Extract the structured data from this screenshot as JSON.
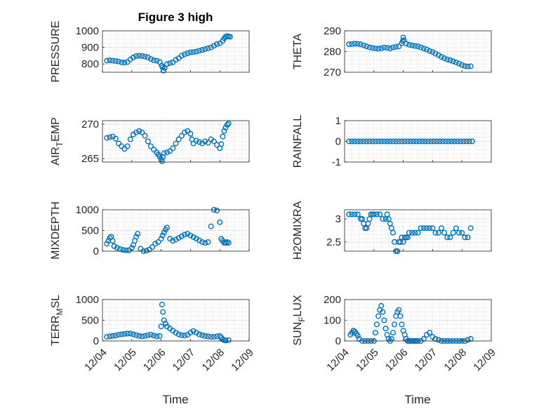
{
  "figure": {
    "title": "Figure 3 high",
    "marker_color": "#0072BD",
    "xlabel": "Time"
  },
  "chart_data": [
    {
      "type": "scatter",
      "title": "Figure 3 high",
      "ylabel": "PRESSURE",
      "ylabel_main": "PRESSURE",
      "ylabel_sub": "",
      "ylim": [
        750,
        1000
      ],
      "yticks": [
        800,
        900,
        1000
      ],
      "xlim": [
        0,
        5
      ],
      "xticks": [],
      "grid": true,
      "x": [
        0.15,
        0.25,
        0.35,
        0.45,
        0.55,
        0.65,
        0.75,
        0.85,
        0.95,
        1.05,
        1.15,
        1.25,
        1.35,
        1.45,
        1.55,
        1.65,
        1.75,
        1.85,
        1.95,
        2.02,
        2.05,
        2.08,
        2.12,
        2.2,
        2.3,
        2.4,
        2.5,
        2.6,
        2.7,
        2.8,
        2.9,
        3.0,
        3.1,
        3.2,
        3.3,
        3.4,
        3.5,
        3.6,
        3.7,
        3.8,
        3.9,
        4.0,
        4.1,
        4.15,
        4.2,
        4.25,
        4.3,
        4.35
      ],
      "y": [
        820,
        822,
        820,
        818,
        815,
        810,
        808,
        812,
        828,
        840,
        848,
        850,
        848,
        845,
        840,
        830,
        822,
        820,
        812,
        790,
        780,
        760,
        775,
        800,
        805,
        810,
        825,
        835,
        850,
        858,
        865,
        870,
        872,
        875,
        880,
        885,
        890,
        895,
        900,
        910,
        920,
        925,
        940,
        955,
        965,
        968,
        966,
        964
      ]
    },
    {
      "type": "scatter",
      "title": "",
      "ylabel": "THETA",
      "ylabel_main": "THETA",
      "ylabel_sub": "",
      "ylim": [
        270,
        290
      ],
      "yticks": [
        270,
        280,
        290
      ],
      "xlim": [
        0,
        5
      ],
      "xticks": [],
      "grid": true,
      "x": [
        0.15,
        0.25,
        0.35,
        0.45,
        0.55,
        0.65,
        0.75,
        0.85,
        0.95,
        1.05,
        1.15,
        1.25,
        1.35,
        1.45,
        1.55,
        1.65,
        1.75,
        1.85,
        1.95,
        1.98,
        2.0,
        2.02,
        2.1,
        2.2,
        2.3,
        2.4,
        2.5,
        2.6,
        2.7,
        2.8,
        2.9,
        3.0,
        3.1,
        3.2,
        3.3,
        3.4,
        3.5,
        3.6,
        3.7,
        3.8,
        3.9,
        4.0,
        4.1,
        4.2,
        4.3
      ],
      "y": [
        283.5,
        283.6,
        283.8,
        283.7,
        283.5,
        283.0,
        282.5,
        282.0,
        281.8,
        281.5,
        281.4,
        281.6,
        282.0,
        281.8,
        281.5,
        282.0,
        282.3,
        282.5,
        284,
        285,
        286.8,
        285.5,
        283.8,
        283.3,
        283.0,
        282.7,
        282.5,
        282.0,
        281.5,
        281.0,
        280.3,
        279.8,
        279.0,
        278.3,
        277.5,
        276.8,
        276.2,
        275.8,
        275.3,
        274.8,
        274.2,
        273.5,
        273.0,
        272.8,
        272.9
      ]
    },
    {
      "type": "scatter",
      "title": "",
      "ylabel": "AIR_TEMP",
      "ylabel_main": "AIR",
      "ylabel_sub": "T",
      "ylabel_rest": "EMP",
      "ylim": [
        264.5,
        270.5
      ],
      "yticks": [
        265,
        270
      ],
      "xlim": [
        0,
        5
      ],
      "xticks": [],
      "grid": true,
      "x": [
        0.15,
        0.25,
        0.35,
        0.45,
        0.55,
        0.65,
        0.75,
        0.85,
        0.95,
        1.05,
        1.15,
        1.25,
        1.35,
        1.45,
        1.55,
        1.65,
        1.75,
        1.85,
        1.9,
        1.95,
        2.0,
        2.03,
        2.06,
        2.1,
        2.2,
        2.3,
        2.4,
        2.5,
        2.6,
        2.7,
        2.8,
        2.9,
        3.0,
        3.05,
        3.1,
        3.2,
        3.3,
        3.4,
        3.5,
        3.6,
        3.7,
        3.8,
        3.9,
        4.0,
        4.05,
        4.1,
        4.15,
        4.2,
        4.25,
        4.3
      ],
      "y": [
        268.0,
        268.1,
        268.2,
        267.9,
        267.2,
        266.8,
        266.4,
        266.8,
        267.8,
        268.5,
        268.8,
        269.0,
        268.8,
        268.3,
        267.5,
        266.8,
        266.3,
        265.9,
        265.6,
        265.3,
        264.9,
        264.6,
        265.2,
        265.8,
        265.9,
        266.1,
        266.5,
        267.2,
        267.8,
        268.3,
        268.8,
        269.0,
        268.6,
        267.8,
        267.2,
        267.6,
        267.4,
        267.2,
        267.5,
        267.3,
        267.8,
        267.5,
        267.0,
        266.5,
        267.1,
        268.2,
        269.0,
        269.5,
        269.9,
        270.1
      ]
    },
    {
      "type": "scatter",
      "title": "",
      "ylabel": "RAINFALL",
      "ylabel_main": "RAINFALL",
      "ylabel_sub": "",
      "ylim": [
        -1,
        1
      ],
      "yticks": [
        -1,
        0,
        1
      ],
      "xlim": [
        0,
        5
      ],
      "xticks": [],
      "grid": true,
      "x": [
        0.15,
        0.25,
        0.35,
        0.45,
        0.55,
        0.65,
        0.75,
        0.85,
        0.95,
        1.05,
        1.15,
        1.25,
        1.35,
        1.45,
        1.55,
        1.65,
        1.75,
        1.85,
        1.95,
        2.05,
        2.15,
        2.25,
        2.35,
        2.45,
        2.55,
        2.65,
        2.75,
        2.85,
        2.95,
        3.05,
        3.15,
        3.25,
        3.35,
        3.45,
        3.55,
        3.65,
        3.75,
        3.85,
        3.95,
        4.05,
        4.15,
        4.25,
        4.35
      ],
      "y": [
        0,
        0,
        0,
        0,
        0,
        0,
        0,
        0,
        0,
        0,
        0,
        0,
        0,
        0,
        0,
        0,
        0,
        0,
        0,
        0,
        0,
        0,
        0,
        0,
        0,
        0,
        0,
        0,
        0,
        0,
        0,
        0,
        0,
        0,
        0,
        0,
        0,
        0,
        0,
        0,
        0,
        0,
        0
      ]
    },
    {
      "type": "scatter",
      "title": "",
      "ylabel": "MIXDEPTH",
      "ylabel_main": "MIXDEPTH",
      "ylabel_sub": "",
      "ylim": [
        0,
        1000
      ],
      "yticks": [
        0,
        500,
        1000
      ],
      "xlim": [
        0,
        5
      ],
      "xticks": [],
      "grid": true,
      "x": [
        0.15,
        0.2,
        0.25,
        0.3,
        0.35,
        0.4,
        0.5,
        0.6,
        0.7,
        0.8,
        0.9,
        1.0,
        1.05,
        1.1,
        1.15,
        1.2,
        1.3,
        1.4,
        1.5,
        1.6,
        1.7,
        1.8,
        1.9,
        2.0,
        2.05,
        2.1,
        2.15,
        2.2,
        2.3,
        2.4,
        2.5,
        2.6,
        2.7,
        2.8,
        2.9,
        3.0,
        3.1,
        3.2,
        3.3,
        3.4,
        3.5,
        3.6,
        3.7,
        3.8,
        3.9,
        4.0,
        4.05,
        4.1,
        4.15,
        4.2,
        4.25,
        4.3
      ],
      "y": [
        180,
        250,
        320,
        350,
        250,
        120,
        80,
        50,
        30,
        20,
        20,
        80,
        150,
        250,
        350,
        420,
        60,
        0,
        10,
        40,
        100,
        180,
        220,
        300,
        380,
        450,
        520,
        570,
        300,
        250,
        280,
        320,
        360,
        400,
        420,
        380,
        340,
        300,
        260,
        220,
        200,
        220,
        600,
        1000,
        980,
        700,
        300,
        250,
        200,
        200,
        220,
        200
      ]
    },
    {
      "type": "scatter",
      "title": "",
      "ylabel": "H2OMIXRA",
      "ylabel_main": "H2OMIXRA",
      "ylabel_sub": "",
      "ylim": [
        2.3,
        3.2
      ],
      "yticks": [
        2.5,
        3
      ],
      "xlim": [
        0,
        5
      ],
      "xticks": [],
      "grid": true,
      "x": [
        0.15,
        0.25,
        0.35,
        0.45,
        0.55,
        0.6,
        0.65,
        0.7,
        0.75,
        0.8,
        0.85,
        0.9,
        0.95,
        1.0,
        1.1,
        1.2,
        1.3,
        1.4,
        1.45,
        1.5,
        1.55,
        1.6,
        1.65,
        1.7,
        1.75,
        1.8,
        1.85,
        1.9,
        1.95,
        2.0,
        2.05,
        2.1,
        2.15,
        2.2,
        2.3,
        2.4,
        2.5,
        2.6,
        2.7,
        2.8,
        2.9,
        3.0,
        3.1,
        3.2,
        3.3,
        3.4,
        3.5,
        3.6,
        3.7,
        3.8,
        3.9,
        4.0,
        4.1,
        4.2,
        4.3
      ],
      "y": [
        3.1,
        3.1,
        3.1,
        3.1,
        3.0,
        3.0,
        2.9,
        2.8,
        2.8,
        2.9,
        3.0,
        3.1,
        3.1,
        3.1,
        3.1,
        3.1,
        3.0,
        3.0,
        3.1,
        3.0,
        2.9,
        2.8,
        2.7,
        2.5,
        2.3,
        2.3,
        2.5,
        2.5,
        2.6,
        2.5,
        2.6,
        2.6,
        2.6,
        2.7,
        2.7,
        2.7,
        2.7,
        2.8,
        2.8,
        2.8,
        2.8,
        2.8,
        2.7,
        2.7,
        2.8,
        2.7,
        2.6,
        2.6,
        2.7,
        2.8,
        2.7,
        2.7,
        2.6,
        2.6,
        2.8
      ]
    },
    {
      "type": "scatter",
      "title": "",
      "ylabel": "TERR_MSL",
      "ylabel_main": "TERR",
      "ylabel_sub": "M",
      "ylabel_rest": "SL",
      "ylim": [
        0,
        1000
      ],
      "yticks": [
        0,
        500,
        1000
      ],
      "xlim": [
        0,
        5
      ],
      "xticks": [
        "12/04",
        "12/05",
        "12/06",
        "12/07",
        "12/08",
        "12/09"
      ],
      "grid": true,
      "x": [
        0.15,
        0.25,
        0.35,
        0.45,
        0.55,
        0.65,
        0.75,
        0.85,
        0.95,
        1.05,
        1.15,
        1.25,
        1.35,
        1.45,
        1.55,
        1.65,
        1.75,
        1.85,
        1.95,
        2.0,
        2.03,
        2.06,
        2.1,
        2.15,
        2.2,
        2.3,
        2.4,
        2.5,
        2.6,
        2.7,
        2.8,
        2.9,
        3.0,
        3.1,
        3.2,
        3.3,
        3.4,
        3.5,
        3.6,
        3.7,
        3.8,
        3.9,
        4.0,
        4.05,
        4.1,
        4.15,
        4.2,
        4.3
      ],
      "y": [
        100,
        110,
        120,
        130,
        150,
        160,
        170,
        180,
        180,
        160,
        140,
        120,
        110,
        120,
        140,
        150,
        130,
        110,
        120,
        350,
        880,
        700,
        500,
        420,
        350,
        300,
        250,
        200,
        160,
        140,
        130,
        150,
        200,
        240,
        200,
        160,
        140,
        120,
        110,
        100,
        100,
        110,
        120,
        80,
        40,
        20,
        10,
        20
      ]
    },
    {
      "type": "scatter",
      "title": "",
      "ylabel": "SUN_FLUX",
      "ylabel_main": "SUN",
      "ylabel_sub": "F",
      "ylabel_rest": "LUX",
      "ylim": [
        0,
        200
      ],
      "yticks": [
        0,
        100,
        200
      ],
      "xlim": [
        0,
        5
      ],
      "xticks": [
        "12/04",
        "12/05",
        "12/06",
        "12/07",
        "12/08",
        "12/09"
      ],
      "grid": true,
      "x": [
        0.2,
        0.25,
        0.3,
        0.35,
        0.4,
        0.45,
        0.5,
        0.6,
        0.7,
        0.8,
        0.9,
        1.0,
        1.05,
        1.1,
        1.15,
        1.2,
        1.25,
        1.3,
        1.35,
        1.4,
        1.45,
        1.5,
        1.55,
        1.6,
        1.65,
        1.7,
        1.75,
        1.8,
        1.85,
        1.9,
        1.95,
        2.0,
        2.05,
        2.1,
        2.15,
        2.2,
        2.25,
        2.3,
        2.35,
        2.4,
        2.45,
        2.5,
        2.6,
        2.7,
        2.8,
        2.9,
        3.0,
        3.1,
        3.2,
        3.3,
        3.4,
        3.5,
        3.6,
        3.7,
        3.8,
        3.9,
        4.0,
        4.1,
        4.2,
        4.3
      ],
      "y": [
        30,
        40,
        50,
        45,
        35,
        25,
        10,
        0,
        0,
        0,
        0,
        0,
        40,
        80,
        120,
        150,
        170,
        140,
        100,
        60,
        30,
        10,
        0,
        10,
        40,
        80,
        120,
        140,
        150,
        120,
        80,
        50,
        30,
        10,
        0,
        0,
        0,
        0,
        0,
        0,
        0,
        0,
        0,
        10,
        30,
        40,
        20,
        10,
        5,
        0,
        0,
        0,
        0,
        0,
        0,
        0,
        0,
        0,
        5,
        10
      ]
    }
  ]
}
